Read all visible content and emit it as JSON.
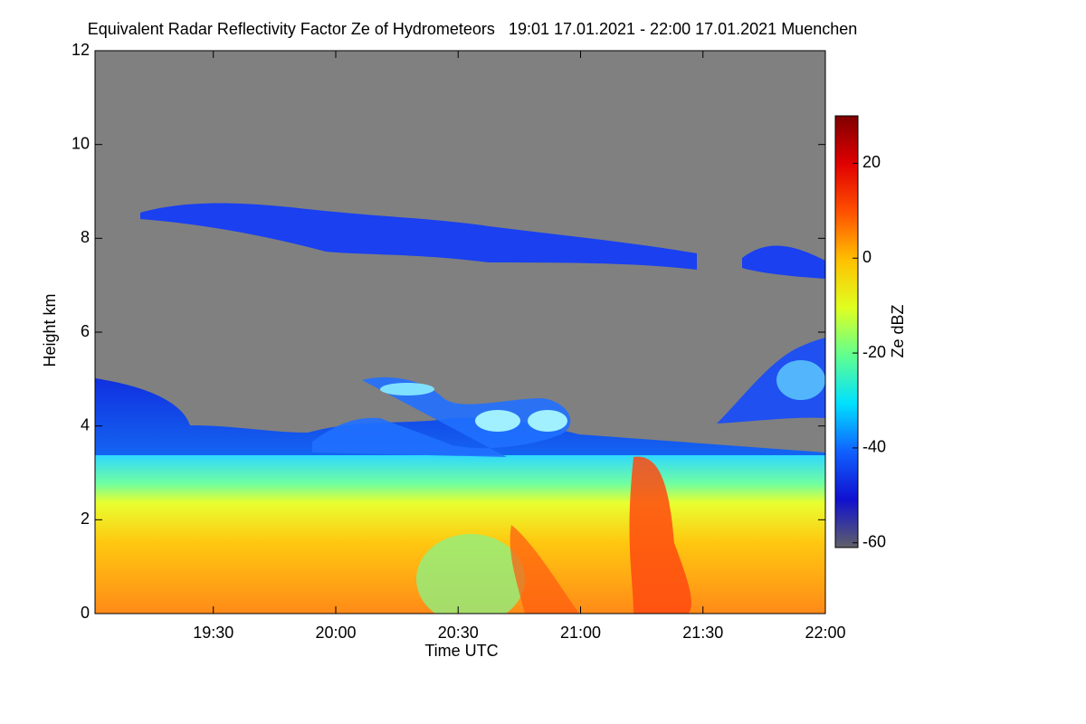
{
  "chart_data": {
    "type": "heatmap",
    "title": "Equivalent Radar Reflectivity Factor Ze of Hydrometeors   19:01 17.01.2021 - 22:00 17.01.2021 Muenchen",
    "x_label": "Time UTC",
    "y_label": "Height km",
    "colorbar_label": "Ze dBZ",
    "xlim": [
      19.0167,
      22.0
    ],
    "xticks": [
      {
        "value": 19.5,
        "label": "19:30"
      },
      {
        "value": 20.0,
        "label": "20:00"
      },
      {
        "value": 20.5,
        "label": "20:30"
      },
      {
        "value": 21.0,
        "label": "21:00"
      },
      {
        "value": 21.5,
        "label": "21:30"
      },
      {
        "value": 22.0,
        "label": "22:00"
      }
    ],
    "ylim": [
      0,
      12
    ],
    "yticks": [
      0,
      2,
      4,
      6,
      8,
      10,
      12
    ],
    "clim": [
      -61,
      30
    ],
    "cticks": [
      -60,
      -40,
      -20,
      0,
      20
    ],
    "colormap": [
      "#606068",
      "#1010d0",
      "#1060ff",
      "#00e0ff",
      "#60ff90",
      "#e0ff20",
      "#ffc000",
      "#ff5000",
      "#e00000",
      "#800000"
    ],
    "background": "#808080"
  }
}
